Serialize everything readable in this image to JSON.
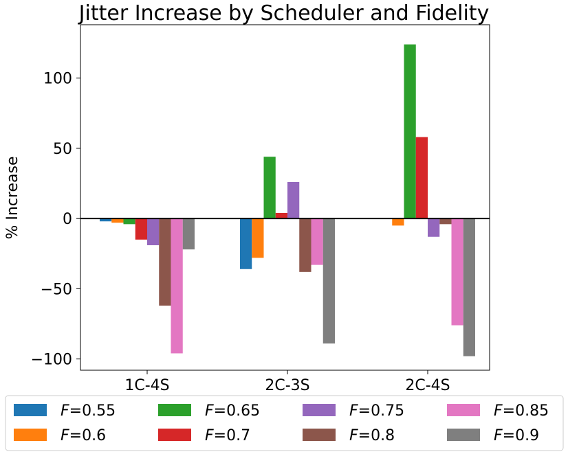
{
  "chart_data": {
    "type": "bar",
    "title": "Jitter Increase by Scheduler and Fidelity",
    "xlabel": "",
    "ylabel": "% Increase",
    "categories": [
      "1C-4S",
      "2C-3S",
      "2C-4S"
    ],
    "ylim": [
      -108,
      138
    ],
    "yticks": [
      100,
      50,
      0,
      -50,
      -100
    ],
    "ytick_labels": [
      "100",
      "50",
      "0",
      "−50",
      "−100"
    ],
    "grid": false,
    "legend": {
      "placement": "bottom-outside",
      "columns": 4,
      "var": "F",
      "eq": "="
    },
    "series": [
      {
        "name": "0.55",
        "color": "#1f77b4",
        "values": [
          -2,
          -36,
          0
        ]
      },
      {
        "name": "0.6",
        "color": "#ff7f0e",
        "values": [
          -3,
          -28,
          -5
        ]
      },
      {
        "name": "0.65",
        "color": "#2ca02c",
        "values": [
          -4,
          44,
          124
        ]
      },
      {
        "name": "0.7",
        "color": "#d62728",
        "values": [
          -15,
          4,
          58
        ]
      },
      {
        "name": "0.75",
        "color": "#9467bd",
        "values": [
          -19,
          26,
          -13
        ]
      },
      {
        "name": "0.8",
        "color": "#8c564b",
        "values": [
          -62,
          -38,
          -4
        ]
      },
      {
        "name": "0.85",
        "color": "#e377c2",
        "values": [
          -96,
          -33,
          -76
        ]
      },
      {
        "name": "0.9",
        "color": "#7f7f7f",
        "values": [
          -22,
          -89,
          -98
        ]
      }
    ]
  }
}
